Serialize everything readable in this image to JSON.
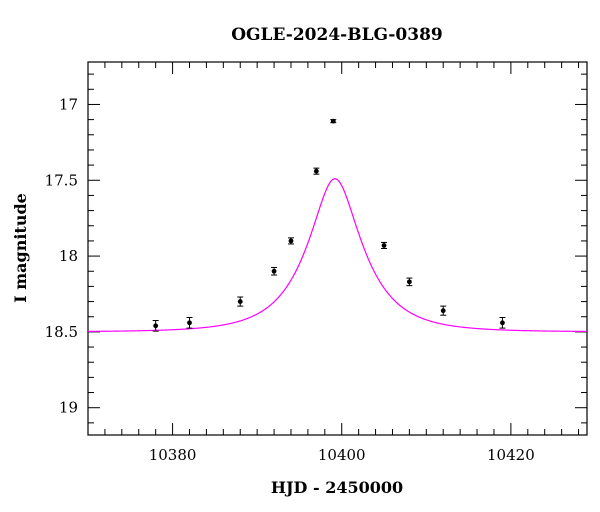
{
  "chart_data": {
    "type": "scatter",
    "title": "OGLE-2024-BLG-0389",
    "xlabel": "HJD - 2450000",
    "ylabel": "I magnitude",
    "xlim": [
      10370,
      10429
    ],
    "ylim": [
      19.18,
      16.72
    ],
    "y_inverted": true,
    "grid": false,
    "x_major_ticks": [
      10380,
      10400,
      10420
    ],
    "x_tick_labels": [
      "10380",
      "10400",
      "10420"
    ],
    "x_minor_step": 2,
    "y_major_ticks": [
      17,
      17.5,
      18,
      18.5,
      19
    ],
    "y_tick_labels": [
      "17",
      "17.5",
      "18",
      "18.5",
      "19"
    ],
    "y_minor_step": 0.1,
    "colors": {
      "model": "#ff00ff",
      "points": "#000000"
    },
    "series": [
      {
        "type": "scatter_errorbars",
        "x": [
          10378,
          10382,
          10388,
          10392,
          10394,
          10397,
          10399,
          10405,
          10408,
          10412,
          10419
        ],
        "y": [
          18.46,
          18.44,
          18.3,
          18.1,
          17.9,
          17.44,
          17.11,
          17.93,
          18.17,
          18.36,
          18.44
        ],
        "yerr": [
          0.035,
          0.035,
          0.03,
          0.025,
          0.02,
          0.02,
          0.01,
          0.02,
          0.025,
          0.03,
          0.035
        ]
      },
      {
        "type": "model_curve",
        "baseline_mag": 18.5,
        "t0": 10399.2,
        "u0": 0.42,
        "tE": 6.0
      }
    ]
  }
}
